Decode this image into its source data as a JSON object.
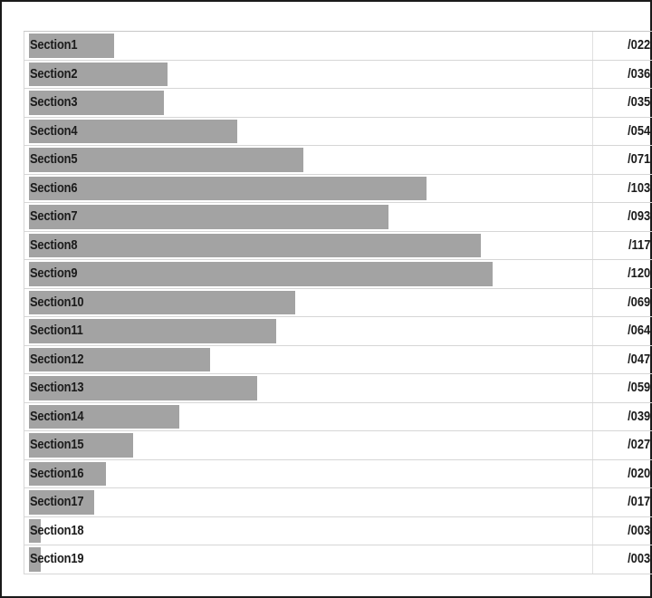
{
  "chart_data": {
    "type": "bar",
    "orientation": "horizontal",
    "bar_color": "#a3a3a3",
    "categories": [
      "Section1",
      "Section2",
      "Section3",
      "Section4",
      "Section5",
      "Section6",
      "Section7",
      "Section8",
      "Section9",
      "Section10",
      "Section11",
      "Section12",
      "Section13",
      "Section14",
      "Section15",
      "Section16",
      "Section17",
      "Section18",
      "Section19"
    ],
    "values": [
      22,
      36,
      35,
      54,
      71,
      103,
      93,
      117,
      120,
      69,
      64,
      47,
      59,
      39,
      27,
      20,
      17,
      3,
      3
    ],
    "value_labels": [
      "/022",
      "/036",
      "/035",
      "/054",
      "/071",
      "/103",
      "/093",
      "/117",
      "/120",
      "/069",
      "/064",
      "/047",
      "/059",
      "/039",
      "/027",
      "/020",
      "/017",
      "/003",
      "/003"
    ],
    "xlim": [
      0,
      129
    ],
    "grid": false,
    "legend": "none"
  }
}
